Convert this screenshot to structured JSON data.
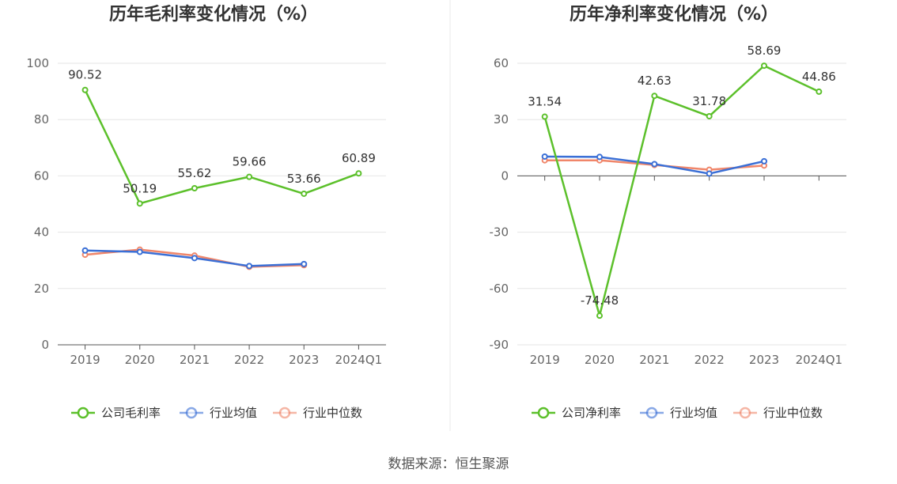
{
  "source_text": "数据来源：恒生聚源",
  "chart_data": [
    {
      "type": "line",
      "title": "历年毛利率变化情况（%）",
      "xlabel": "",
      "ylabel": "",
      "categories": [
        "2019",
        "2020",
        "2021",
        "2022",
        "2023",
        "2024Q1"
      ],
      "ylim": [
        0,
        100
      ],
      "yticks": [
        0,
        20,
        40,
        60,
        80,
        100
      ],
      "grid": true,
      "legend_position": "bottom",
      "series": [
        {
          "name": "公司毛利率",
          "color": "#5cc02b",
          "values": [
            90.52,
            50.19,
            55.62,
            59.66,
            53.66,
            60.89
          ],
          "data_labels": true
        },
        {
          "name": "行业均值",
          "color": "#3a6fd6",
          "values": [
            33.5,
            33.0,
            30.8,
            28.0,
            28.7,
            null
          ],
          "data_labels": false
        },
        {
          "name": "行业中位数",
          "color": "#f0866a",
          "values": [
            32.0,
            33.8,
            31.7,
            27.7,
            28.3,
            null
          ],
          "data_labels": false
        }
      ]
    },
    {
      "type": "line",
      "title": "历年净利率变化情况（%）",
      "xlabel": "",
      "ylabel": "",
      "categories": [
        "2019",
        "2020",
        "2021",
        "2022",
        "2023",
        "2024Q1"
      ],
      "ylim": [
        -90,
        60
      ],
      "yticks": [
        -90,
        -60,
        -30,
        0,
        30,
        60
      ],
      "grid": true,
      "legend_position": "bottom",
      "series": [
        {
          "name": "公司净利率",
          "color": "#5cc02b",
          "values": [
            31.54,
            -74.48,
            42.63,
            31.78,
            58.69,
            44.86
          ],
          "data_labels": true
        },
        {
          "name": "行业均值",
          "color": "#3a6fd6",
          "values": [
            10.3,
            10.1,
            6.3,
            1.2,
            7.8,
            null
          ],
          "data_labels": false
        },
        {
          "name": "行业中位数",
          "color": "#f0866a",
          "values": [
            8.3,
            8.3,
            5.8,
            3.3,
            5.5,
            null
          ],
          "data_labels": false
        }
      ]
    }
  ]
}
